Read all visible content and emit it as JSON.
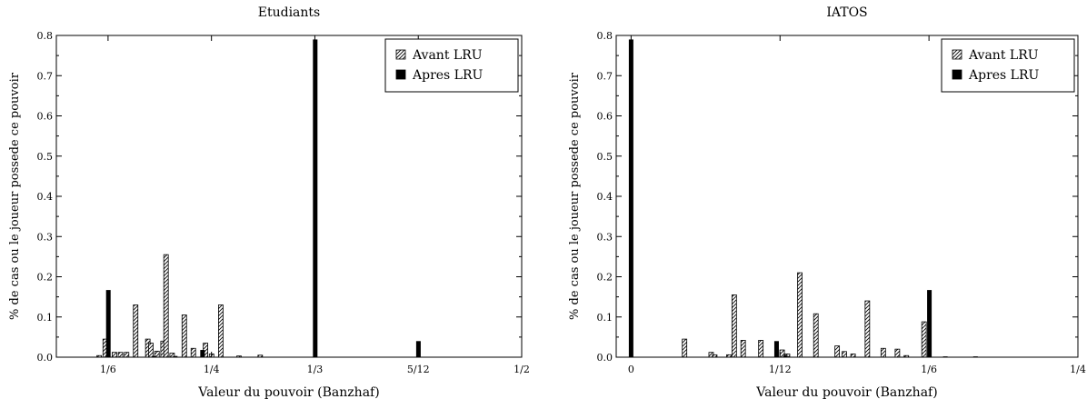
{
  "pattern_note": "",
  "chart_data": [
    {
      "type": "bar",
      "title": "Etudiants",
      "xlabel": "Valeur du pouvoir (Banzhaf)",
      "ylabel": "% de cas ou le joueur possede ce pouvoir",
      "xlim": [
        0.125,
        0.5
      ],
      "ylim": [
        0,
        0.8
      ],
      "xticks": [
        {
          "value": 0.16667,
          "label": "1/6"
        },
        {
          "value": 0.25,
          "label": "1/4"
        },
        {
          "value": 0.33333,
          "label": "1/3"
        },
        {
          "value": 0.41667,
          "label": "5/12"
        },
        {
          "value": 0.5,
          "label": "1/2"
        }
      ],
      "yticks": [
        {
          "value": 0.0,
          "label": "0.0"
        },
        {
          "value": 0.1,
          "label": "0.1"
        },
        {
          "value": 0.2,
          "label": "0.2"
        },
        {
          "value": 0.3,
          "label": "0.3"
        },
        {
          "value": 0.4,
          "label": "0.4"
        },
        {
          "value": 0.5,
          "label": "0.5"
        },
        {
          "value": 0.6,
          "label": "0.6"
        },
        {
          "value": 0.7,
          "label": "0.7"
        },
        {
          "value": 0.8,
          "label": "0.8"
        }
      ],
      "legend_position": "top-right",
      "series": [
        {
          "name": "Avant LRU",
          "style": "hatched",
          "points": [
            {
              "x": 0.1595,
              "y": 0.004
            },
            {
              "x": 0.1644,
              "y": 0.045
            },
            {
              "x": 0.1718,
              "y": 0.012
            },
            {
              "x": 0.1767,
              "y": 0.012
            },
            {
              "x": 0.1816,
              "y": 0.012
            },
            {
              "x": 0.1889,
              "y": 0.13
            },
            {
              "x": 0.1987,
              "y": 0.045
            },
            {
              "x": 0.2012,
              "y": 0.035
            },
            {
              "x": 0.2061,
              "y": 0.015
            },
            {
              "x": 0.211,
              "y": 0.04
            },
            {
              "x": 0.2134,
              "y": 0.255
            },
            {
              "x": 0.2183,
              "y": 0.01
            },
            {
              "x": 0.2281,
              "y": 0.105
            },
            {
              "x": 0.2354,
              "y": 0.022
            },
            {
              "x": 0.2452,
              "y": 0.035
            },
            {
              "x": 0.2501,
              "y": 0.008
            },
            {
              "x": 0.2575,
              "y": 0.13
            },
            {
              "x": 0.2722,
              "y": 0.003
            },
            {
              "x": 0.2893,
              "y": 0.005
            }
          ]
        },
        {
          "name": "Apres LRU",
          "style": "solid",
          "points": [
            {
              "x": 0.1669,
              "y": 0.167
            },
            {
              "x": 0.2036,
              "y": 0.003
            },
            {
              "x": 0.2208,
              "y": 0.003
            },
            {
              "x": 0.2428,
              "y": 0.018
            },
            {
              "x": 0.3336,
              "y": 0.79
            },
            {
              "x": 0.4168,
              "y": 0.04
            }
          ]
        }
      ]
    },
    {
      "type": "bar",
      "title": "IATOS",
      "xlabel": "Valeur du pouvoir (Banzhaf)",
      "ylabel": "% de cas ou le joueur possede ce pouvoir",
      "xlim": [
        -0.00833,
        0.25
      ],
      "ylim": [
        0,
        0.8
      ],
      "xticks": [
        {
          "value": 0.0,
          "label": "0"
        },
        {
          "value": 0.08333,
          "label": "1/12"
        },
        {
          "value": 0.16667,
          "label": "1/6"
        },
        {
          "value": 0.25,
          "label": "1/4"
        }
      ],
      "yticks": [
        {
          "value": 0.0,
          "label": "0.0"
        },
        {
          "value": 0.1,
          "label": "0.1"
        },
        {
          "value": 0.2,
          "label": "0.2"
        },
        {
          "value": 0.3,
          "label": "0.3"
        },
        {
          "value": 0.4,
          "label": "0.4"
        },
        {
          "value": 0.5,
          "label": "0.5"
        },
        {
          "value": 0.6,
          "label": "0.6"
        },
        {
          "value": 0.7,
          "label": "0.7"
        },
        {
          "value": 0.8,
          "label": "0.8"
        }
      ],
      "legend_position": "top-right",
      "series": [
        {
          "name": "Avant LRU",
          "style": "hatched",
          "points": [
            {
              "x": 0.0299,
              "y": 0.045
            },
            {
              "x": 0.0448,
              "y": 0.012
            },
            {
              "x": 0.0468,
              "y": 0.006
            },
            {
              "x": 0.0547,
              "y": 0.006
            },
            {
              "x": 0.0577,
              "y": 0.155
            },
            {
              "x": 0.0627,
              "y": 0.042
            },
            {
              "x": 0.0726,
              "y": 0.042
            },
            {
              "x": 0.0845,
              "y": 0.018
            },
            {
              "x": 0.0875,
              "y": 0.008
            },
            {
              "x": 0.0944,
              "y": 0.21
            },
            {
              "x": 0.1034,
              "y": 0.108
            },
            {
              "x": 0.1153,
              "y": 0.028
            },
            {
              "x": 0.1193,
              "y": 0.014
            },
            {
              "x": 0.1242,
              "y": 0.008
            },
            {
              "x": 0.1322,
              "y": 0.14
            },
            {
              "x": 0.1411,
              "y": 0.022
            },
            {
              "x": 0.149,
              "y": 0.02
            },
            {
              "x": 0.154,
              "y": 0.004
            },
            {
              "x": 0.1639,
              "y": 0.088
            }
          ]
        },
        {
          "name": "Apres LRU",
          "style": "solid",
          "points": [
            {
              "x": 0.0,
              "y": 0.79
            },
            {
              "x": 0.0814,
              "y": 0.04
            },
            {
              "x": 0.0864,
              "y": 0.004
            },
            {
              "x": 0.1669,
              "y": 0.167
            },
            {
              "x": 0.1758,
              "y": 0.002
            },
            {
              "x": 0.1927,
              "y": 0.002
            }
          ]
        }
      ]
    }
  ]
}
